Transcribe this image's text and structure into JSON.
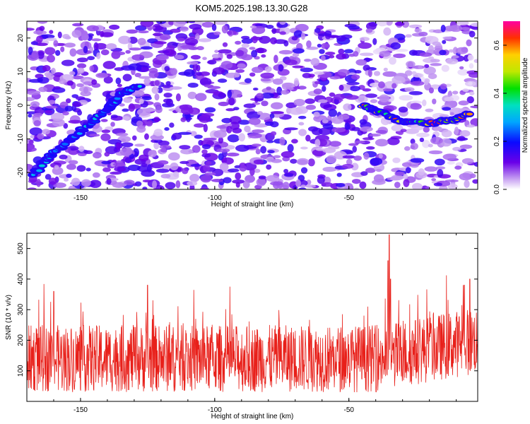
{
  "title": "KOM5.2025.198.13.30.G28",
  "colors": {
    "snr_line": "#e8201a",
    "frame": "#000000",
    "background": "#ffffff"
  },
  "chart_data": [
    {
      "type": "heatmap",
      "xlabel": "Height of straight line (km)",
      "ylabel": "Frequency (Hz)",
      "xlim": [
        -170,
        -2
      ],
      "ylim": [
        -25,
        25
      ],
      "xticks": [
        -150,
        -100,
        -50
      ],
      "yticks": [
        -20,
        -10,
        0,
        10,
        20
      ],
      "colorbar": {
        "label": "Normalized spectral amplitude",
        "range": [
          0.0,
          0.7
        ],
        "ticks": [
          0.0,
          0.2,
          0.4,
          0.6
        ]
      },
      "background_level": 0.1,
      "features": [
        {
          "name": "diagonal-trace",
          "points": [
            [
              -168,
              -21
            ],
            [
              -160,
              -14
            ],
            [
              -150,
              -8
            ],
            [
              -140,
              -1
            ],
            [
              -135,
              3
            ],
            [
              -128,
              6
            ]
          ],
          "amplitude": 0.3
        },
        {
          "name": "curved-trace",
          "points": [
            [
              -45,
              0
            ],
            [
              -38,
              -2
            ],
            [
              -30,
              -5
            ],
            [
              -20,
              -5.5
            ],
            [
              -12,
              -4.5
            ],
            [
              -5,
              -2.5
            ]
          ],
          "amplitude": 0.65
        }
      ]
    },
    {
      "type": "line",
      "xlabel": "Height of straight line (km)",
      "ylabel": "SNR (10 * v/v)",
      "xlim": [
        -170,
        -2
      ],
      "ylim": [
        0,
        550
      ],
      "xticks": [
        -150,
        -100,
        -50
      ],
      "yticks": [
        100,
        200,
        300,
        400,
        500
      ],
      "series": [
        {
          "baseline": 140,
          "spread": 110,
          "peaks": [
            [
              -35,
              545
            ],
            [
              -35.5,
              460
            ],
            [
              -34.5,
              400
            ],
            [
              -5,
              400
            ],
            [
              -7,
              380
            ],
            [
              -125,
              380
            ],
            [
              -160,
              360
            ]
          ]
        }
      ]
    }
  ]
}
